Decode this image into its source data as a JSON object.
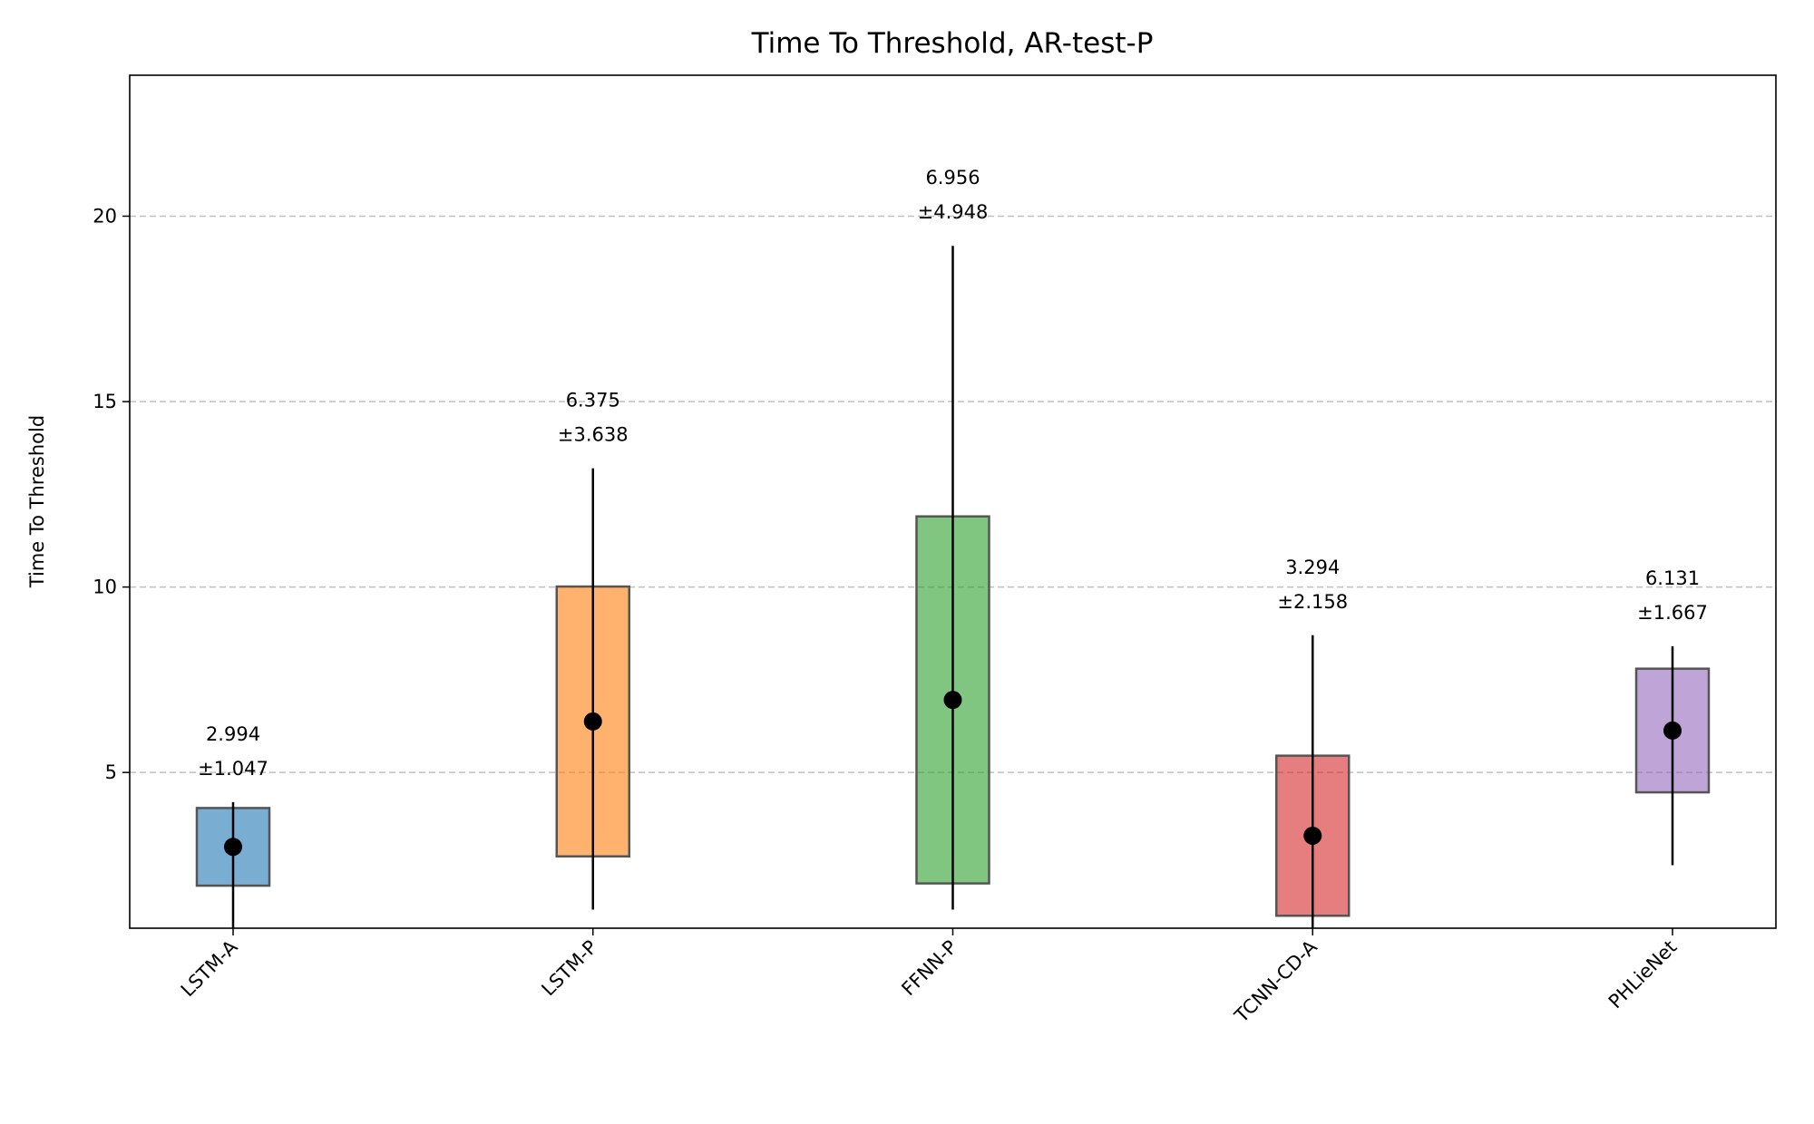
{
  "chart_data": {
    "type": "range_box",
    "title": "Time To Threshold, AR-test-P",
    "y_label": "Time To Threshold",
    "categories": [
      "LSTM-A",
      "LSTM-P",
      "FFNN-P",
      "TCNN-CD-A",
      "PHLieNet"
    ],
    "values": [
      2.994,
      6.375,
      6.956,
      3.294,
      6.131
    ],
    "std": [
      1.047,
      3.638,
      4.948,
      2.158,
      1.667
    ],
    "std_labels": [
      "±1.047",
      "±3.638",
      "±4.948",
      "±2.158",
      "±1.667"
    ],
    "min": [
      0.8,
      1.3,
      1.3,
      0.8,
      2.5
    ],
    "max": [
      4.2,
      13.2,
      19.2,
      8.7,
      8.4
    ],
    "colors": [
      "#1f77b4",
      "#ff7f0e",
      "#2ca02c",
      "#d62728",
      "#9467bd"
    ],
    "ylim": [
      0.8,
      23.8
    ],
    "yticks": [
      5,
      10,
      15,
      20
    ],
    "grid": true
  }
}
